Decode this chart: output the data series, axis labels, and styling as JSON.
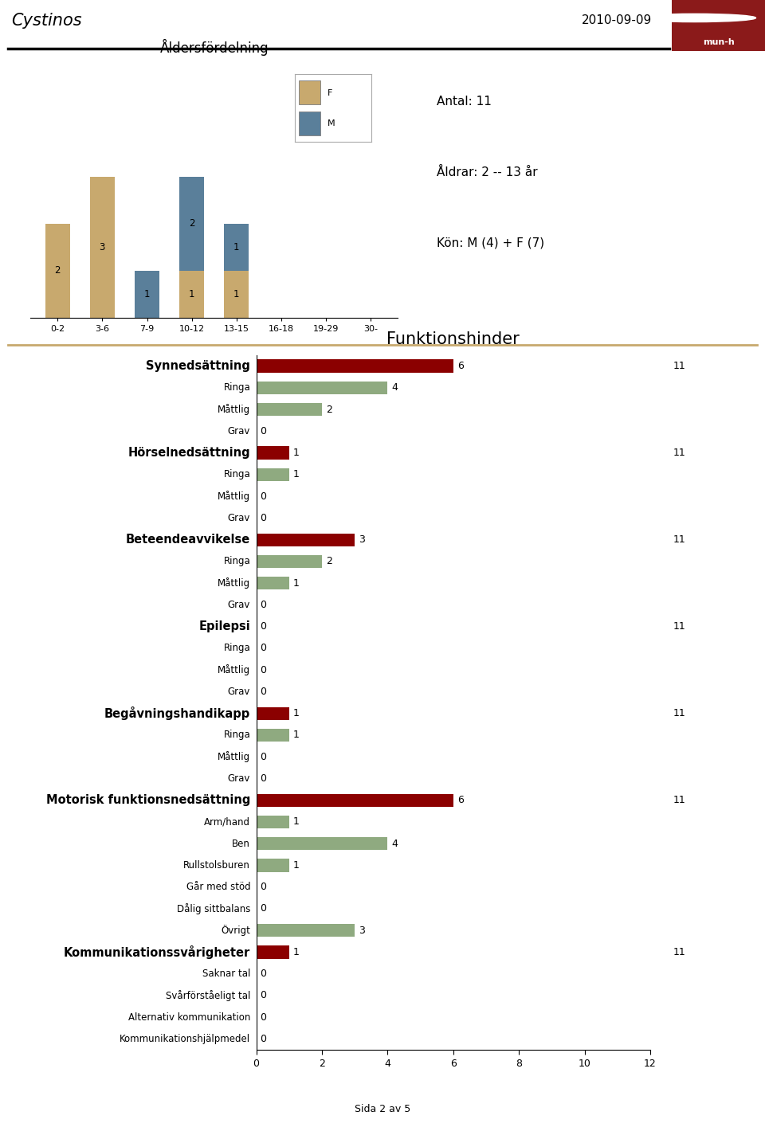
{
  "title_top_left": "Cystinos",
  "title_top_right": "2010-09-09",
  "bar_chart_title": "Åldersfördelning",
  "age_categories": [
    "0-2",
    "3-6",
    "7-9",
    "10-12",
    "13-15",
    "16-18",
    "19-29",
    "30-"
  ],
  "age_F": [
    2,
    3,
    0,
    1,
    1,
    0,
    0,
    0
  ],
  "age_M": [
    0,
    0,
    1,
    2,
    1,
    0,
    0,
    0
  ],
  "age_color_F": "#c8a96e",
  "age_color_M": "#5a7f9a",
  "info_text_lines": [
    "Antal: 11",
    "Åldrar: 2 -- 13 år",
    "Kön: M (4) + F (7)"
  ],
  "section2_title": "Funktionshinder",
  "horizontal_bars": [
    {
      "label": "Synnedsättning",
      "value": 6,
      "color": "#8b0000",
      "bold": true,
      "show_n": true,
      "n": 11
    },
    {
      "label": "Ringa",
      "value": 4,
      "color": "#8faa80",
      "bold": false,
      "show_n": false,
      "n": null
    },
    {
      "label": "Måttlig",
      "value": 2,
      "color": "#8faa80",
      "bold": false,
      "show_n": false,
      "n": null
    },
    {
      "label": "Grav",
      "value": 0,
      "color": "#8faa80",
      "bold": false,
      "show_n": false,
      "n": null
    },
    {
      "label": "Hörselnedsättning",
      "value": 1,
      "color": "#8b0000",
      "bold": true,
      "show_n": true,
      "n": 11
    },
    {
      "label": "Ringa",
      "value": 1,
      "color": "#8faa80",
      "bold": false,
      "show_n": false,
      "n": null
    },
    {
      "label": "Måttlig",
      "value": 0,
      "color": "#8faa80",
      "bold": false,
      "show_n": false,
      "n": null
    },
    {
      "label": "Grav",
      "value": 0,
      "color": "#8faa80",
      "bold": false,
      "show_n": false,
      "n": null
    },
    {
      "label": "Beteendeavvikelse",
      "value": 3,
      "color": "#8b0000",
      "bold": true,
      "show_n": true,
      "n": 11
    },
    {
      "label": "Ringa",
      "value": 2,
      "color": "#8faa80",
      "bold": false,
      "show_n": false,
      "n": null
    },
    {
      "label": "Måttlig",
      "value": 1,
      "color": "#8faa80",
      "bold": false,
      "show_n": false,
      "n": null
    },
    {
      "label": "Grav",
      "value": 0,
      "color": "#8faa80",
      "bold": false,
      "show_n": false,
      "n": null
    },
    {
      "label": "Epilepsi",
      "value": 0,
      "color": "#8b0000",
      "bold": true,
      "show_n": true,
      "n": 11
    },
    {
      "label": "Ringa",
      "value": 0,
      "color": "#8faa80",
      "bold": false,
      "show_n": false,
      "n": null
    },
    {
      "label": "Måttlig",
      "value": 0,
      "color": "#8faa80",
      "bold": false,
      "show_n": false,
      "n": null
    },
    {
      "label": "Grav",
      "value": 0,
      "color": "#8faa80",
      "bold": false,
      "show_n": false,
      "n": null
    },
    {
      "label": "Begåvningshandikapp",
      "value": 1,
      "color": "#8b0000",
      "bold": true,
      "show_n": true,
      "n": 11
    },
    {
      "label": "Ringa",
      "value": 1,
      "color": "#8faa80",
      "bold": false,
      "show_n": false,
      "n": null
    },
    {
      "label": "Måttlig",
      "value": 0,
      "color": "#8faa80",
      "bold": false,
      "show_n": false,
      "n": null
    },
    {
      "label": "Grav",
      "value": 0,
      "color": "#8faa80",
      "bold": false,
      "show_n": false,
      "n": null
    },
    {
      "label": "Motorisk funktionsnedsättning",
      "value": 6,
      "color": "#8b0000",
      "bold": true,
      "show_n": true,
      "n": 11
    },
    {
      "label": "Arm/hand",
      "value": 1,
      "color": "#8faa80",
      "bold": false,
      "show_n": false,
      "n": null
    },
    {
      "label": "Ben",
      "value": 4,
      "color": "#8faa80",
      "bold": false,
      "show_n": false,
      "n": null
    },
    {
      "label": "Rullstolsburen",
      "value": 1,
      "color": "#8faa80",
      "bold": false,
      "show_n": false,
      "n": null
    },
    {
      "label": "Går med stöd",
      "value": 0,
      "color": "#8faa80",
      "bold": false,
      "show_n": false,
      "n": null
    },
    {
      "label": "Dålig sittbalans",
      "value": 0,
      "color": "#8faa80",
      "bold": false,
      "show_n": false,
      "n": null
    },
    {
      "label": "Övrigt",
      "value": 3,
      "color": "#8faa80",
      "bold": false,
      "show_n": false,
      "n": null
    },
    {
      "label": "Kommunikationssvårigheter",
      "value": 1,
      "color": "#8b0000",
      "bold": true,
      "show_n": true,
      "n": 11
    },
    {
      "label": "Saknar tal",
      "value": 0,
      "color": "#8faa80",
      "bold": false,
      "show_n": false,
      "n": null
    },
    {
      "label": "Svårförståeligt tal",
      "value": 0,
      "color": "#8faa80",
      "bold": false,
      "show_n": false,
      "n": null
    },
    {
      "label": "Alternativ kommunikation",
      "value": 0,
      "color": "#8faa80",
      "bold": false,
      "show_n": false,
      "n": null
    },
    {
      "label": "Kommunikationshjälpmedel",
      "value": 0,
      "color": "#8faa80",
      "bold": false,
      "show_n": false,
      "n": null
    }
  ],
  "hbar_xlim": [
    0,
    12
  ],
  "hbar_xticks": [
    0,
    2,
    4,
    6,
    8,
    10,
    12
  ],
  "footer_text": "Sida 2 av 5",
  "separator_line_color": "#c8a96e",
  "background_color": "#ffffff",
  "dark_red_box": "#8b1a1a"
}
